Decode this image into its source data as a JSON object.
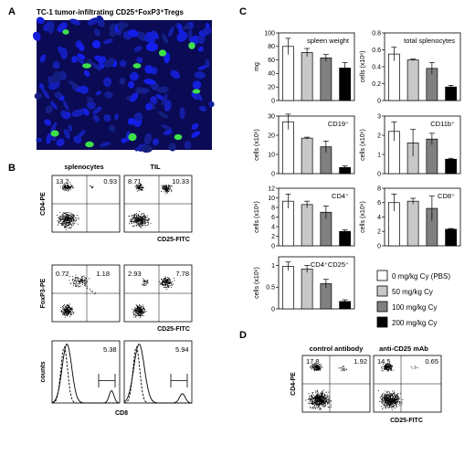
{
  "panels": {
    "A": {
      "letter": "A",
      "title": "TC-1 tumor-infiltrating CD25⁺FoxP3⁺Tregs"
    },
    "B": {
      "letter": "B",
      "col_headers": [
        "splenocytes",
        "TIL"
      ],
      "rows": [
        {
          "ylabel": "CD4-PE",
          "xlabel": "CD25-FITC",
          "plots": [
            {
              "ul": "13.2",
              "ur": "0.93"
            },
            {
              "ul": "8.71",
              "ur": "10.33"
            }
          ]
        },
        {
          "ylabel": "FoxP3-PE",
          "xlabel": "CD25-FITC",
          "plots": [
            {
              "ul": "0.72",
              "ur": "1.18"
            },
            {
              "ul": "2.93",
              "ur": "7.78"
            }
          ]
        }
      ],
      "histograms": {
        "ylabel": "counts",
        "xlabel": "CD8",
        "values": [
          "5.38",
          "5.94"
        ]
      }
    },
    "C": {
      "letter": "C"
    },
    "D": {
      "letter": "D",
      "col_headers": [
        "control antibody",
        "anti-CD25 mAb"
      ],
      "ylabel": "CD4-PE",
      "xlabel": "CD25-FITC",
      "plots": [
        {
          "ul": "17.8",
          "ur": "1.92"
        },
        {
          "ul": "14.5",
          "ur": "0.65"
        }
      ]
    }
  },
  "legend": [
    {
      "label": "0 mg/kg Cy (PBS)",
      "color": "#ffffff"
    },
    {
      "label": "50 mg/kg Cy",
      "color": "#c8c8c8"
    },
    {
      "label": "100 mg/kg Cy",
      "color": "#808080"
    },
    {
      "label": "200 mg/kg Cy",
      "color": "#000000"
    }
  ],
  "chart_data": [
    {
      "type": "bar",
      "title": "spleen weight",
      "ylabel": "mg",
      "ylim": [
        0,
        100
      ],
      "yticks": [
        0,
        20,
        40,
        60,
        80,
        100
      ],
      "values": [
        80,
        71,
        63,
        48
      ],
      "errors": [
        12,
        6,
        5,
        8
      ]
    },
    {
      "type": "bar",
      "title": "total splenocytes",
      "ylabel": "cells (x10⁸)",
      "ylim": [
        0,
        0.8
      ],
      "yticks": [
        0,
        0.2,
        0.4,
        0.6,
        0.8
      ],
      "values": [
        0.55,
        0.48,
        0.38,
        0.16
      ],
      "errors": [
        0.08,
        0.01,
        0.07,
        0.02
      ]
    },
    {
      "type": "bar",
      "title": "CD19⁺",
      "ylabel": "cells (x10⁶)",
      "ylim": [
        0,
        30
      ],
      "yticks": [
        0,
        10,
        20,
        30
      ],
      "values": [
        27,
        18.5,
        14,
        3.2
      ],
      "errors": [
        4,
        0.5,
        3,
        0.8
      ]
    },
    {
      "type": "bar",
      "title": "CD11b⁺",
      "ylabel": "cells (x10⁶)",
      "ylim": [
        0,
        3
      ],
      "yticks": [
        0,
        1,
        2,
        3
      ],
      "values": [
        2.2,
        1.6,
        1.8,
        0.75
      ],
      "errors": [
        0.5,
        0.7,
        0.3,
        0.05
      ]
    },
    {
      "type": "bar",
      "title": "CD4⁺",
      "ylabel": "cells (x10⁶)",
      "ylim": [
        0,
        12
      ],
      "yticks": [
        0,
        2,
        4,
        6,
        8,
        10,
        12
      ],
      "values": [
        9.3,
        8.6,
        7.0,
        3.0
      ],
      "errors": [
        1.5,
        0.7,
        1.3,
        0.3
      ]
    },
    {
      "type": "bar",
      "title": "CD8⁺",
      "ylabel": "cells (x10⁶)",
      "ylim": [
        0,
        8
      ],
      "yticks": [
        0,
        2,
        4,
        6,
        8
      ],
      "values": [
        6.0,
        6.2,
        5.2,
        2.3
      ],
      "errors": [
        1.2,
        0.4,
        1.7,
        0.1
      ]
    },
    {
      "type": "bar",
      "title": "CD4⁺CD25⁺",
      "ylabel": "cells (x10⁶)",
      "ylim": [
        0,
        1.2
      ],
      "yticks": [
        0,
        0.5,
        1
      ],
      "values": [
        0.98,
        0.92,
        0.58,
        0.17
      ],
      "errors": [
        0.1,
        0.08,
        0.1,
        0.04
      ]
    }
  ]
}
